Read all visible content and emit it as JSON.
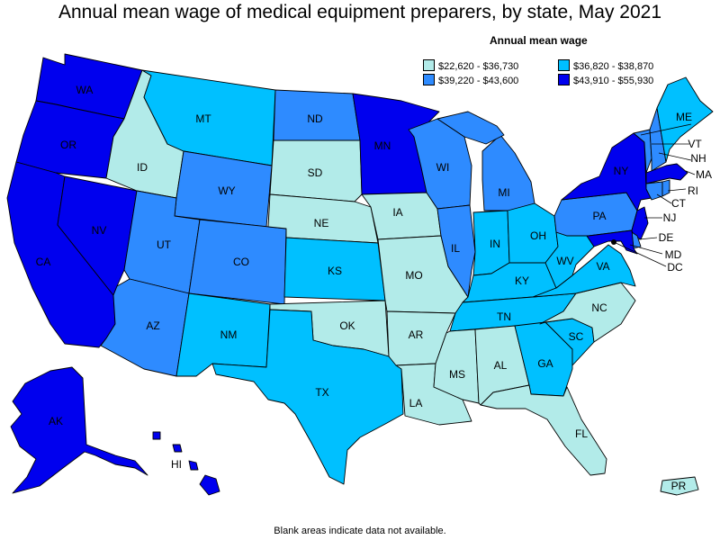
{
  "title": "Annual mean wage of medical equipment preparers, by state, May 2021",
  "legend": {
    "title": "Annual mean wage",
    "items": [
      {
        "label": "$22,620 - $36,730",
        "color": "#b2ebe9"
      },
      {
        "label": "$36,820 - $38,870",
        "color": "#00c0ff"
      },
      {
        "label": "$39,220 - $43,600",
        "color": "#2e8bff"
      },
      {
        "label": "$43,910 - $55,930",
        "color": "#0000ee"
      }
    ]
  },
  "footnote": "Blank areas indicate data not available.",
  "states": {
    "WA": 3,
    "OR": 3,
    "CA": 3,
    "NV": 3,
    "ID": 0,
    "MT": 1,
    "WY": 2,
    "UT": 2,
    "AZ": 2,
    "CO": 2,
    "NM": 1,
    "ND": 2,
    "SD": 0,
    "NE": 0,
    "KS": 1,
    "OK": 0,
    "TX": 1,
    "MN": 3,
    "IA": 0,
    "MO": 0,
    "AR": 0,
    "LA": 0,
    "WI": 2,
    "IL": 2,
    "MS": 0,
    "MI": 2,
    "IN": 1,
    "OH": 1,
    "KY": 1,
    "TN": 1,
    "AL": 0,
    "GA": 1,
    "FL": 0,
    "SC": 1,
    "NC": 0,
    "VA": 1,
    "WV": 1,
    "PA": 2,
    "NY": 3,
    "VT": 2,
    "NH": 2,
    "ME": 1,
    "MA": 3,
    "RI": 2,
    "CT": 2,
    "NJ": 3,
    "DE": 2,
    "MD": 3,
    "DC": 3,
    "AK": 3,
    "HI": 3,
    "PR": 0
  }
}
